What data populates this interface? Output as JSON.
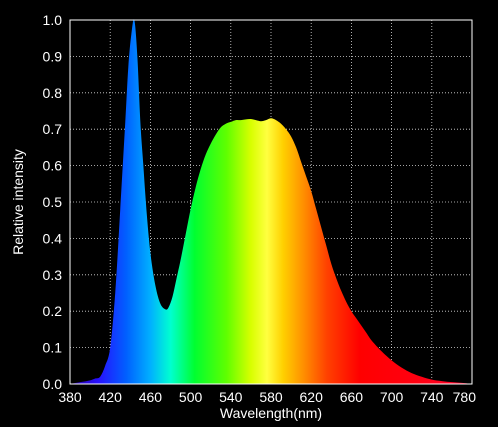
{
  "chart_data": {
    "type": "area",
    "title": "",
    "xlabel": "Wavelength(nm)",
    "ylabel": "Relative intensity",
    "xlim": [
      380,
      780
    ],
    "ylim": [
      0,
      1.0
    ],
    "grid": true,
    "background_color": "#000000",
    "text_color": "#ffffff",
    "fill": "visible-spectrum-gradient",
    "x_ticks": [
      380,
      420,
      460,
      500,
      540,
      580,
      620,
      660,
      700,
      740,
      780
    ],
    "y_ticks": [
      "0.0",
      "0.1",
      "0.2",
      "0.3",
      "0.4",
      "0.5",
      "0.6",
      "0.7",
      "0.8",
      "0.9",
      "1.0"
    ],
    "series": [
      {
        "x": [
          380,
          390,
          400,
          405,
          410,
          415,
          420,
          425,
          430,
          435,
          438,
          441,
          444,
          447,
          450,
          453,
          456,
          460,
          465,
          470,
          475,
          478,
          482,
          486,
          490,
          495,
          500,
          505,
          510,
          515,
          520,
          525,
          530,
          535,
          540,
          545,
          550,
          555,
          560,
          565,
          570,
          575,
          580,
          585,
          590,
          595,
          600,
          605,
          610,
          615,
          620,
          625,
          630,
          635,
          640,
          645,
          650,
          655,
          660,
          665,
          670,
          675,
          680,
          690,
          700,
          710,
          720,
          730,
          740,
          750,
          760,
          770,
          780
        ],
        "y": [
          0.0,
          0.005,
          0.01,
          0.015,
          0.02,
          0.05,
          0.1,
          0.25,
          0.48,
          0.72,
          0.87,
          0.96,
          1.0,
          0.9,
          0.72,
          0.6,
          0.48,
          0.36,
          0.27,
          0.22,
          0.205,
          0.21,
          0.24,
          0.29,
          0.34,
          0.41,
          0.48,
          0.54,
          0.59,
          0.63,
          0.66,
          0.685,
          0.705,
          0.715,
          0.72,
          0.725,
          0.725,
          0.727,
          0.728,
          0.725,
          0.722,
          0.725,
          0.73,
          0.725,
          0.715,
          0.7,
          0.68,
          0.65,
          0.61,
          0.57,
          0.53,
          0.48,
          0.43,
          0.38,
          0.33,
          0.29,
          0.255,
          0.225,
          0.2,
          0.18,
          0.16,
          0.14,
          0.12,
          0.09,
          0.065,
          0.045,
          0.03,
          0.02,
          0.012,
          0.008,
          0.005,
          0.003,
          0.0
        ]
      }
    ]
  }
}
